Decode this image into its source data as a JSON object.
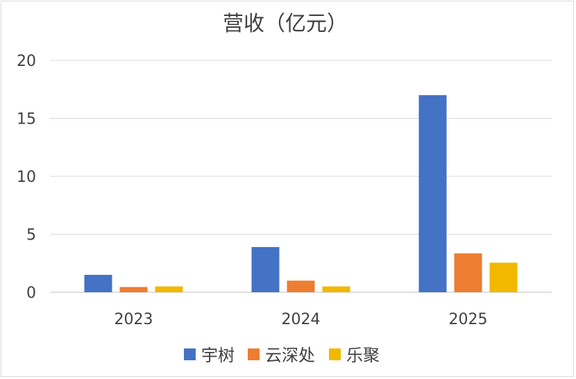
{
  "chart_data": {
    "type": "bar",
    "title": "营收（亿元）",
    "categories": [
      "2023",
      "2024",
      "2025"
    ],
    "series": [
      {
        "name": "宇树",
        "color": "#4472C4",
        "values": [
          1.5,
          3.9,
          17.0
        ]
      },
      {
        "name": "云深处",
        "color": "#ED7D31",
        "values": [
          0.45,
          1.0,
          3.35
        ]
      },
      {
        "name": "乐聚",
        "color": "#F2B800",
        "values": [
          0.5,
          0.5,
          2.55
        ]
      }
    ],
    "ylim": [
      0,
      20
    ],
    "yticks": [
      0,
      5,
      10,
      15,
      20
    ],
    "grid": true,
    "legend": "bottom"
  }
}
